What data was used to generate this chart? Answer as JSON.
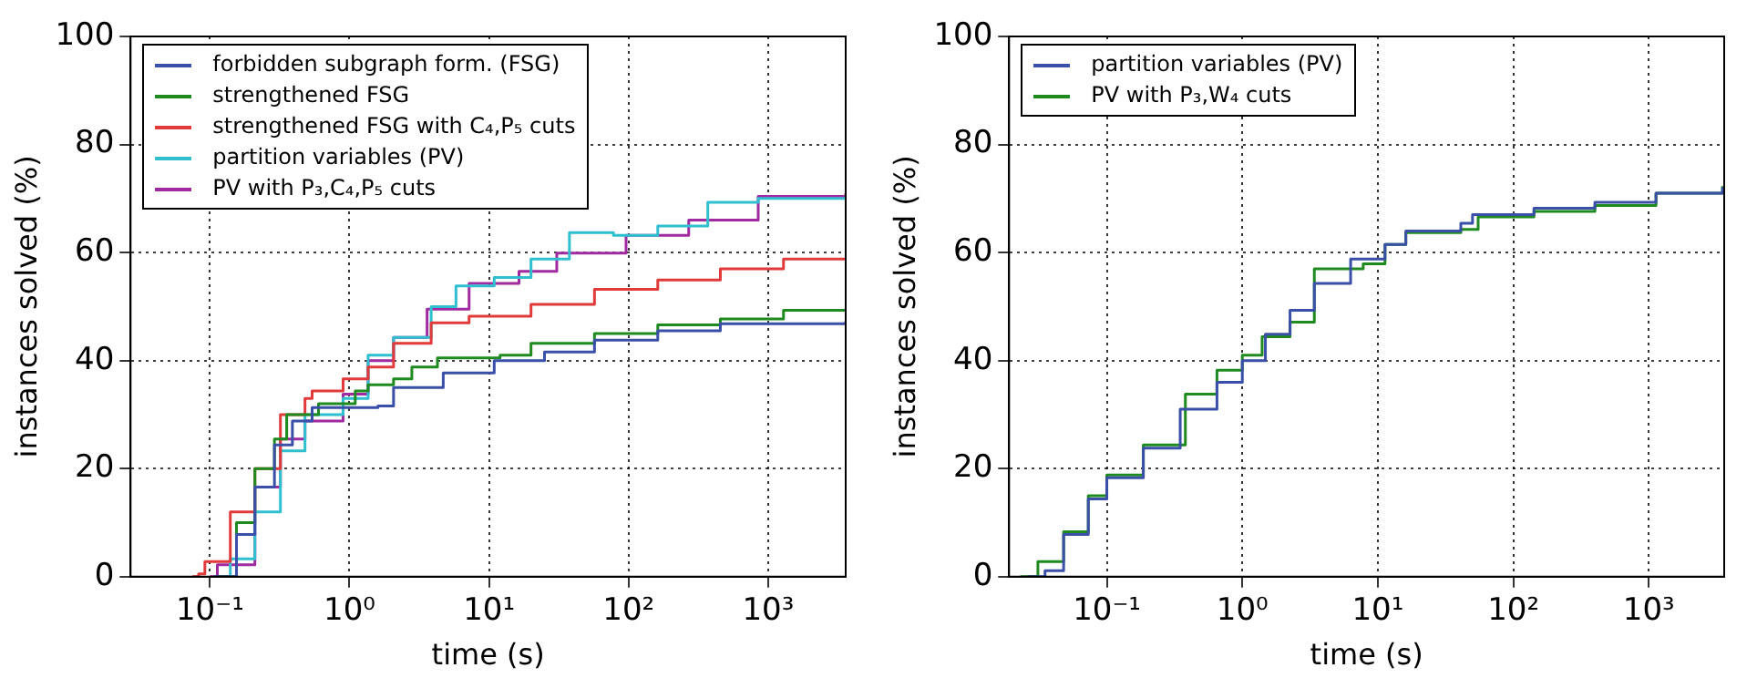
{
  "chart_data": [
    {
      "type": "step",
      "xlabel": "time (s)",
      "ylabel": "instances solved (%)",
      "log": "x",
      "grid": true,
      "legend": "top left",
      "xlim": [
        0.027,
        3600
      ],
      "ylim": [
        0,
        100
      ],
      "xticks": [
        {
          "value": 0.1,
          "label": "10⁻¹"
        },
        {
          "value": 1,
          "label": "10⁰"
        },
        {
          "value": 10,
          "label": "10¹"
        },
        {
          "value": 100,
          "label": "10²"
        },
        {
          "value": 1000,
          "label": "10³"
        }
      ],
      "yticks": [
        0,
        20,
        40,
        60,
        80,
        100
      ],
      "series": [
        {
          "name": "forbidden subgraph form. (FSG)",
          "color": "#3a4fa8",
          "x": [
            0.107,
            0.155,
            0.21,
            0.29,
            0.39,
            0.54,
            1.6,
            2.07,
            4.7,
            10.9,
            25,
            57,
            162,
            455,
            3600
          ],
          "values": [
            0,
            7.8,
            16.6,
            24.4,
            28.8,
            31.3,
            31.6,
            35,
            37.7,
            40,
            41.6,
            43.8,
            45.5,
            46.8,
            47.3
          ]
        },
        {
          "name": "strengthened FSG",
          "color": "#1f8a1f",
          "x": [
            0.11,
            0.155,
            0.21,
            0.29,
            0.355,
            0.6,
            1.1,
            1.36,
            2.07,
            2.8,
            4.27,
            12,
            20,
            57,
            162,
            455,
            1290,
            3600
          ],
          "values": [
            0,
            10,
            20,
            25.5,
            30,
            32,
            34.4,
            35.5,
            36.6,
            38.8,
            40.5,
            41,
            43.2,
            45,
            46.6,
            47.7,
            49.3,
            49.6
          ]
        },
        {
          "name": "strengthened FSG with C₄,P₅ cuts",
          "color": "#e03a3a",
          "x": [
            0.075,
            0.083,
            0.092,
            0.14,
            0.21,
            0.32,
            0.48,
            0.54,
            0.9,
            1.36,
            2.07,
            3.85,
            7.2,
            20,
            57,
            162,
            455,
            1290,
            3600
          ],
          "values": [
            0,
            0.5,
            2.8,
            12,
            20,
            30,
            33,
            34.4,
            36.6,
            38.8,
            43.2,
            47,
            48.2,
            50.4,
            53.2,
            54.9,
            57,
            58.8,
            59
          ]
        },
        {
          "name": "partition variables (PV)",
          "color": "#2fbfcf",
          "x": [
            0.115,
            0.14,
            0.21,
            0.32,
            0.48,
            0.9,
            1.36,
            2.07,
            3.85,
            5.8,
            10.9,
            20,
            37.7,
            78,
            162,
            370,
            850,
            3600
          ],
          "values": [
            0,
            3.3,
            12,
            23.3,
            30,
            33,
            41,
            44.3,
            50,
            53.8,
            55.4,
            58.8,
            63.7,
            63.2,
            64.9,
            69.3,
            70,
            70.4
          ]
        },
        {
          "name": "PV with P₃,C₄,P₅ cuts",
          "color": "#a02aa0",
          "x": [
            0.1,
            0.113,
            0.21,
            0.32,
            0.48,
            0.9,
            1.36,
            2.07,
            3.6,
            7.2,
            16.4,
            30.6,
            96,
            270,
            850,
            3600
          ],
          "values": [
            0,
            2.2,
            16.6,
            25.5,
            28.8,
            33.8,
            40,
            44.3,
            49.5,
            54.3,
            56.5,
            59.9,
            63.2,
            66,
            70.4,
            71
          ]
        }
      ]
    },
    {
      "type": "step",
      "xlabel": "time (s)",
      "ylabel": "instances solved (%)",
      "log": "x",
      "grid": true,
      "legend": "top left",
      "xlim": [
        0.019,
        3600
      ],
      "ylim": [
        0,
        100
      ],
      "xticks": [
        {
          "value": 0.1,
          "label": "10⁻¹"
        },
        {
          "value": 1,
          "label": "10⁰"
        },
        {
          "value": 10,
          "label": "10¹"
        },
        {
          "value": 100,
          "label": "10²"
        },
        {
          "value": 1000,
          "label": "10³"
        }
      ],
      "yticks": [
        0,
        20,
        40,
        60,
        80,
        100
      ],
      "series": [
        {
          "name": "partition variables (PV)",
          "color": "#3a4fa8",
          "x": [
            0.026,
            0.035,
            0.048,
            0.073,
            0.1,
            0.186,
            0.348,
            0.65,
            1,
            1.48,
            2.25,
            3.4,
            6.3,
            11.3,
            16.1,
            41,
            50,
            142,
            400,
            1130,
            3500
          ],
          "values": [
            0,
            1.1,
            7.8,
            14.4,
            18.3,
            23.8,
            31,
            36,
            40,
            44.9,
            49.3,
            54.3,
            58.8,
            61.5,
            64,
            65.4,
            67,
            68.2,
            69.3,
            71,
            72.1
          ]
        },
        {
          "name": "PV with P₃,W₄ cuts",
          "color": "#1f8a1f",
          "x": [
            0.023,
            0.031,
            0.048,
            0.073,
            0.1,
            0.186,
            0.38,
            0.65,
            1,
            1.4,
            2.25,
            3.4,
            7.8,
            11.3,
            16.1,
            41,
            55,
            142,
            400,
            1130,
            3500
          ],
          "values": [
            0,
            2.8,
            8.3,
            15,
            18.8,
            24.4,
            33.8,
            38.2,
            41,
            44.4,
            47.1,
            57,
            57.9,
            61.5,
            63.7,
            64.3,
            66.6,
            67.6,
            68.7,
            71,
            72.3
          ]
        }
      ]
    }
  ]
}
